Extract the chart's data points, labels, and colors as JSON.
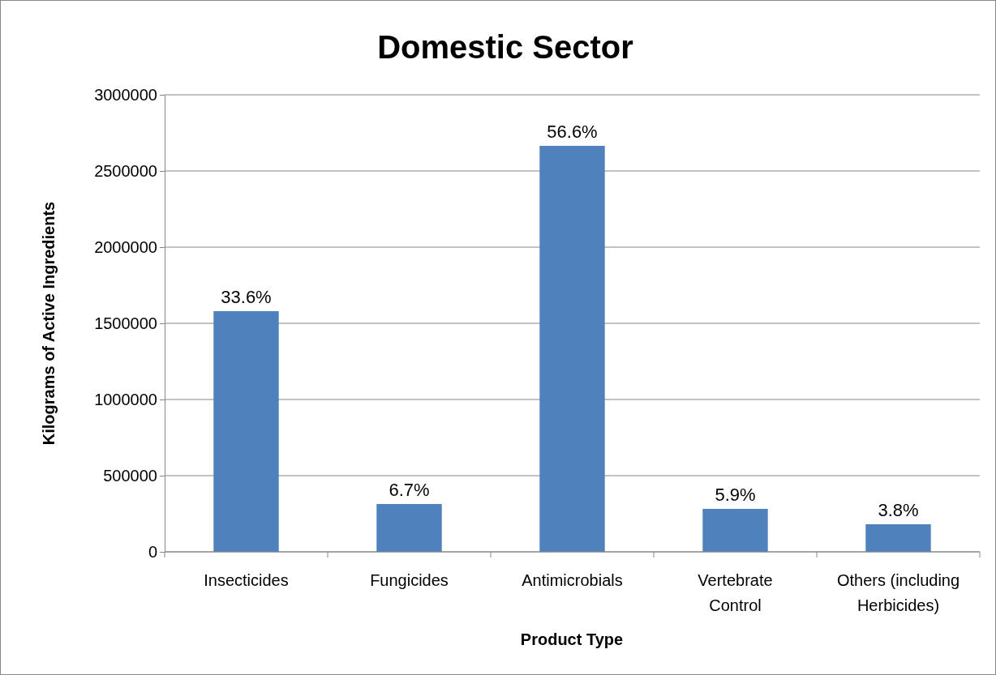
{
  "chart_data": {
    "type": "bar",
    "title": "Domestic Sector",
    "xlabel": "Product Type",
    "ylabel": "Kilograms of Active Ingredients",
    "categories": [
      "Insecticides",
      "Fungicides",
      "Antimicrobials",
      "Vertebrate Control",
      "Others (including Herbicides)"
    ],
    "values": [
      1580000,
      314000,
      2665000,
      282000,
      181000
    ],
    "annotations": [
      {
        "text": "33.6%",
        "x": "Insecticides",
        "y": 1580000
      },
      {
        "text": "6.7%",
        "x": "Fungicides",
        "y": 314000
      },
      {
        "text": "56.6%",
        "x": "Antimicrobials",
        "y": 2665000
      },
      {
        "text": "5.9%",
        "x": "Vertebrate Control",
        "y": 282000
      },
      {
        "text": "3.8%",
        "x": "Others (including Herbicides)",
        "y": 181000
      }
    ],
    "color": "#4f81bd",
    "ylim": [
      0,
      3000000
    ],
    "yticks": [
      0,
      500000,
      1000000,
      1500000,
      2000000,
      2500000,
      3000000
    ],
    "grid": "y"
  }
}
